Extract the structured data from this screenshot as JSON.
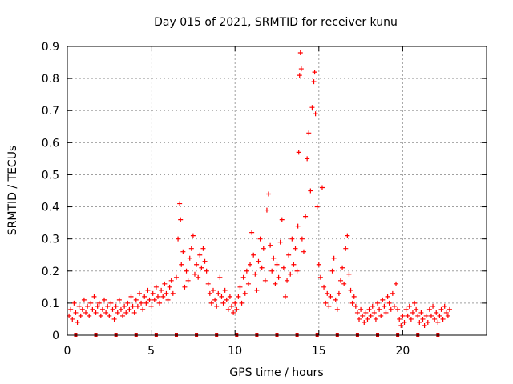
{
  "chart_data": {
    "type": "scatter",
    "title": "Day 015 of 2021, SRMTID for receiver kunu",
    "xlabel": "GPS time / hours",
    "ylabel": "SRMTID / TECUs",
    "xlim": [
      0,
      25
    ],
    "ylim": [
      0,
      0.9
    ],
    "xticks": [
      0,
      5,
      10,
      15,
      20
    ],
    "xtick_labels": [
      "0",
      "5",
      "10",
      "15",
      "20"
    ],
    "yticks": [
      0,
      0.1,
      0.2,
      0.3,
      0.4,
      0.5,
      0.6,
      0.7,
      0.8,
      0.9
    ],
    "ytick_labels": [
      "0",
      "0.1",
      "0.2",
      "0.3",
      "0.4",
      "0.5",
      "0.6",
      "0.7",
      "0.8",
      "0.9"
    ],
    "grid": true,
    "marker": "+",
    "series_color": "#ff0000",
    "gap_marker_color": "#cc0000",
    "data_gaps_x": [
      0.5,
      1.7,
      2.9,
      4.1,
      5.3,
      6.5,
      7.7,
      8.9,
      10.1,
      11.3,
      12.5,
      13.7,
      14.9,
      16.1,
      17.3,
      18.5,
      19.7,
      20.9,
      22.1
    ],
    "points": [
      [
        0.1,
        0.06
      ],
      [
        0.2,
        0.08
      ],
      [
        0.3,
        0.05
      ],
      [
        0.4,
        0.1
      ],
      [
        0.5,
        0.07
      ],
      [
        0.6,
        0.04
      ],
      [
        0.7,
        0.09
      ],
      [
        0.8,
        0.06
      ],
      [
        0.9,
        0.08
      ],
      [
        1.0,
        0.11
      ],
      [
        1.1,
        0.07
      ],
      [
        1.2,
        0.09
      ],
      [
        1.3,
        0.06
      ],
      [
        1.4,
        0.1
      ],
      [
        1.5,
        0.08
      ],
      [
        1.6,
        0.12
      ],
      [
        1.7,
        0.07
      ],
      [
        1.8,
        0.09
      ],
      [
        1.9,
        0.1
      ],
      [
        2.0,
        0.06
      ],
      [
        2.1,
        0.08
      ],
      [
        2.2,
        0.11
      ],
      [
        2.3,
        0.07
      ],
      [
        2.4,
        0.09
      ],
      [
        2.5,
        0.06
      ],
      [
        2.6,
        0.1
      ],
      [
        2.7,
        0.08
      ],
      [
        2.8,
        0.05
      ],
      [
        2.9,
        0.09
      ],
      [
        3.0,
        0.07
      ],
      [
        3.1,
        0.11
      ],
      [
        3.2,
        0.08
      ],
      [
        3.3,
        0.06
      ],
      [
        3.4,
        0.09
      ],
      [
        3.5,
        0.07
      ],
      [
        3.6,
        0.1
      ],
      [
        3.7,
        0.08
      ],
      [
        3.8,
        0.12
      ],
      [
        3.9,
        0.09
      ],
      [
        4.0,
        0.07
      ],
      [
        4.1,
        0.11
      ],
      [
        4.2,
        0.09
      ],
      [
        4.3,
        0.13
      ],
      [
        4.4,
        0.1
      ],
      [
        4.5,
        0.08
      ],
      [
        4.6,
        0.12
      ],
      [
        4.7,
        0.1
      ],
      [
        4.8,
        0.14
      ],
      [
        4.9,
        0.11
      ],
      [
        5.0,
        0.09
      ],
      [
        5.1,
        0.13
      ],
      [
        5.2,
        0.11
      ],
      [
        5.3,
        0.15
      ],
      [
        5.4,
        0.12
      ],
      [
        5.5,
        0.1
      ],
      [
        5.6,
        0.14
      ],
      [
        5.7,
        0.12
      ],
      [
        5.8,
        0.16
      ],
      [
        5.9,
        0.13
      ],
      [
        6.0,
        0.11
      ],
      [
        6.1,
        0.15
      ],
      [
        6.2,
        0.17
      ],
      [
        6.3,
        0.13
      ],
      [
        6.5,
        0.18
      ],
      [
        6.6,
        0.3
      ],
      [
        6.7,
        0.41
      ],
      [
        6.75,
        0.36
      ],
      [
        6.8,
        0.22
      ],
      [
        6.9,
        0.26
      ],
      [
        7.0,
        0.15
      ],
      [
        7.1,
        0.2
      ],
      [
        7.2,
        0.17
      ],
      [
        7.3,
        0.24
      ],
      [
        7.4,
        0.27
      ],
      [
        7.5,
        0.31
      ],
      [
        7.6,
        0.19
      ],
      [
        7.7,
        0.22
      ],
      [
        7.8,
        0.18
      ],
      [
        7.9,
        0.25
      ],
      [
        8.0,
        0.21
      ],
      [
        8.1,
        0.27
      ],
      [
        8.2,
        0.23
      ],
      [
        8.3,
        0.2
      ],
      [
        8.4,
        0.16
      ],
      [
        8.5,
        0.13
      ],
      [
        8.6,
        0.1
      ],
      [
        8.7,
        0.14
      ],
      [
        8.8,
        0.11
      ],
      [
        8.9,
        0.09
      ],
      [
        9.0,
        0.13
      ],
      [
        9.1,
        0.18
      ],
      [
        9.2,
        0.12
      ],
      [
        9.3,
        0.1
      ],
      [
        9.4,
        0.14
      ],
      [
        9.5,
        0.11
      ],
      [
        9.6,
        0.08
      ],
      [
        9.7,
        0.12
      ],
      [
        9.8,
        0.09
      ],
      [
        9.9,
        0.07
      ],
      [
        10.0,
        0.1
      ],
      [
        10.1,
        0.08
      ],
      [
        10.2,
        0.12
      ],
      [
        10.3,
        0.15
      ],
      [
        10.4,
        0.1
      ],
      [
        10.5,
        0.18
      ],
      [
        10.6,
        0.13
      ],
      [
        10.7,
        0.2
      ],
      [
        10.8,
        0.16
      ],
      [
        10.9,
        0.22
      ],
      [
        11.0,
        0.32
      ],
      [
        11.1,
        0.25
      ],
      [
        11.2,
        0.19
      ],
      [
        11.3,
        0.14
      ],
      [
        11.4,
        0.23
      ],
      [
        11.5,
        0.3
      ],
      [
        11.6,
        0.21
      ],
      [
        11.7,
        0.27
      ],
      [
        11.8,
        0.17
      ],
      [
        11.9,
        0.39
      ],
      [
        12.0,
        0.44
      ],
      [
        12.1,
        0.28
      ],
      [
        12.2,
        0.2
      ],
      [
        12.3,
        0.24
      ],
      [
        12.4,
        0.16
      ],
      [
        12.5,
        0.22
      ],
      [
        12.6,
        0.18
      ],
      [
        12.7,
        0.29
      ],
      [
        12.8,
        0.36
      ],
      [
        12.9,
        0.21
      ],
      [
        13.0,
        0.12
      ],
      [
        13.1,
        0.17
      ],
      [
        13.2,
        0.25
      ],
      [
        13.3,
        0.19
      ],
      [
        13.4,
        0.3
      ],
      [
        13.5,
        0.22
      ],
      [
        13.6,
        0.27
      ],
      [
        13.7,
        0.2
      ],
      [
        13.75,
        0.34
      ],
      [
        13.8,
        0.57
      ],
      [
        13.85,
        0.81
      ],
      [
        13.9,
        0.88
      ],
      [
        13.95,
        0.83
      ],
      [
        14.0,
        0.3
      ],
      [
        14.1,
        0.26
      ],
      [
        14.2,
        0.37
      ],
      [
        14.3,
        0.55
      ],
      [
        14.4,
        0.63
      ],
      [
        14.5,
        0.45
      ],
      [
        14.6,
        0.71
      ],
      [
        14.7,
        0.79
      ],
      [
        14.75,
        0.82
      ],
      [
        14.8,
        0.69
      ],
      [
        14.9,
        0.4
      ],
      [
        15.0,
        0.22
      ],
      [
        15.1,
        0.18
      ],
      [
        15.2,
        0.46
      ],
      [
        15.3,
        0.15
      ],
      [
        15.4,
        0.1
      ],
      [
        15.5,
        0.13
      ],
      [
        15.6,
        0.09
      ],
      [
        15.7,
        0.12
      ],
      [
        15.8,
        0.2
      ],
      [
        15.9,
        0.24
      ],
      [
        16.0,
        0.11
      ],
      [
        16.1,
        0.08
      ],
      [
        16.2,
        0.13
      ],
      [
        16.3,
        0.17
      ],
      [
        16.4,
        0.21
      ],
      [
        16.5,
        0.16
      ],
      [
        16.6,
        0.27
      ],
      [
        16.7,
        0.31
      ],
      [
        16.8,
        0.19
      ],
      [
        16.9,
        0.14
      ],
      [
        17.0,
        0.1
      ],
      [
        17.1,
        0.12
      ],
      [
        17.2,
        0.09
      ],
      [
        17.3,
        0.07
      ],
      [
        17.4,
        0.05
      ],
      [
        17.5,
        0.08
      ],
      [
        17.6,
        0.06
      ],
      [
        17.7,
        0.04
      ],
      [
        17.8,
        0.07
      ],
      [
        17.9,
        0.05
      ],
      [
        18.0,
        0.08
      ],
      [
        18.1,
        0.06
      ],
      [
        18.2,
        0.09
      ],
      [
        18.3,
        0.07
      ],
      [
        18.4,
        0.05
      ],
      [
        18.5,
        0.1
      ],
      [
        18.6,
        0.08
      ],
      [
        18.7,
        0.06
      ],
      [
        18.8,
        0.11
      ],
      [
        18.9,
        0.09
      ],
      [
        19.0,
        0.07
      ],
      [
        19.1,
        0.12
      ],
      [
        19.2,
        0.1
      ],
      [
        19.3,
        0.08
      ],
      [
        19.4,
        0.13
      ],
      [
        19.5,
        0.09
      ],
      [
        19.6,
        0.16
      ],
      [
        19.7,
        0.08
      ],
      [
        19.8,
        0.05
      ],
      [
        19.9,
        0.03
      ],
      [
        20.0,
        0.06
      ],
      [
        20.1,
        0.04
      ],
      [
        20.2,
        0.08
      ],
      [
        20.3,
        0.06
      ],
      [
        20.4,
        0.09
      ],
      [
        20.5,
        0.05
      ],
      [
        20.6,
        0.07
      ],
      [
        20.7,
        0.1
      ],
      [
        20.8,
        0.08
      ],
      [
        20.9,
        0.06
      ],
      [
        21.0,
        0.04
      ],
      [
        21.1,
        0.07
      ],
      [
        21.2,
        0.05
      ],
      [
        21.3,
        0.03
      ],
      [
        21.4,
        0.06
      ],
      [
        21.5,
        0.04
      ],
      [
        21.6,
        0.08
      ],
      [
        21.7,
        0.06
      ],
      [
        21.8,
        0.09
      ],
      [
        21.9,
        0.05
      ],
      [
        22.0,
        0.07
      ],
      [
        22.1,
        0.04
      ],
      [
        22.2,
        0.06
      ],
      [
        22.3,
        0.08
      ],
      [
        22.4,
        0.05
      ],
      [
        22.5,
        0.09
      ],
      [
        22.6,
        0.07
      ],
      [
        22.7,
        0.06
      ],
      [
        22.8,
        0.08
      ]
    ]
  }
}
